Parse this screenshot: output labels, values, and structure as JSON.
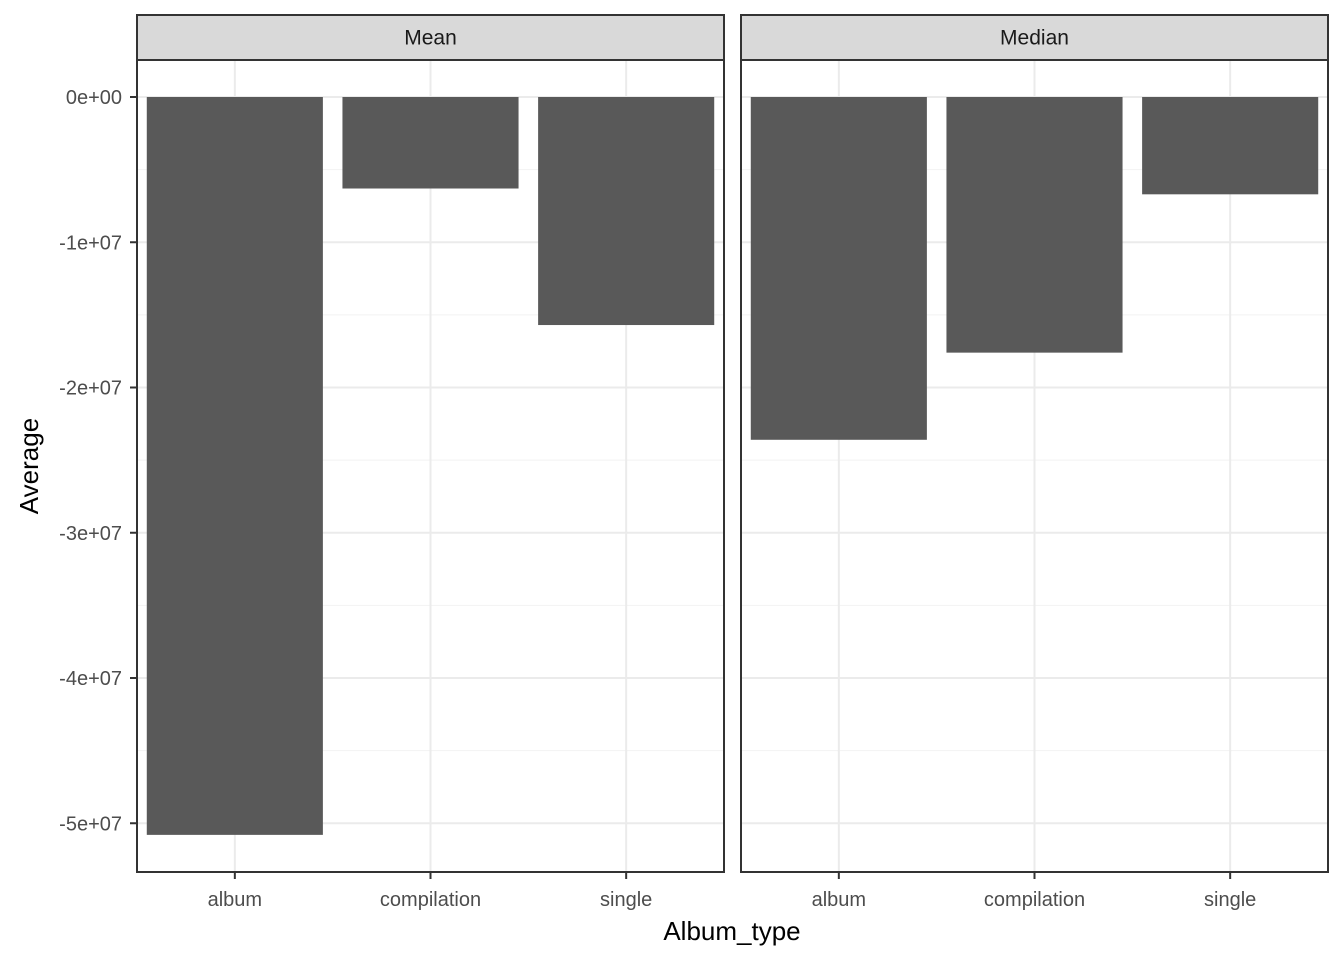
{
  "chart_data": {
    "type": "bar",
    "layout": "facet",
    "xlabel": "Album_type",
    "ylabel": "Average",
    "ylim": [
      -53000000,
      3000000
    ],
    "yticks": [
      0,
      -10000000,
      -20000000,
      -30000000,
      -40000000,
      -50000000
    ],
    "ytick_labels": [
      "0e+00",
      "-1e+07",
      "-2e+07",
      "-3e+07",
      "-4e+07",
      "-5e+07"
    ],
    "categories": [
      "album",
      "compilation",
      "single"
    ],
    "grid": true,
    "bar_color": "#595959",
    "facets": [
      {
        "name": "Mean",
        "values": [
          -50800000,
          -6300000,
          -15700000
        ]
      },
      {
        "name": "Median",
        "values": [
          -23600000,
          -17600000,
          -6700000
        ]
      }
    ]
  }
}
